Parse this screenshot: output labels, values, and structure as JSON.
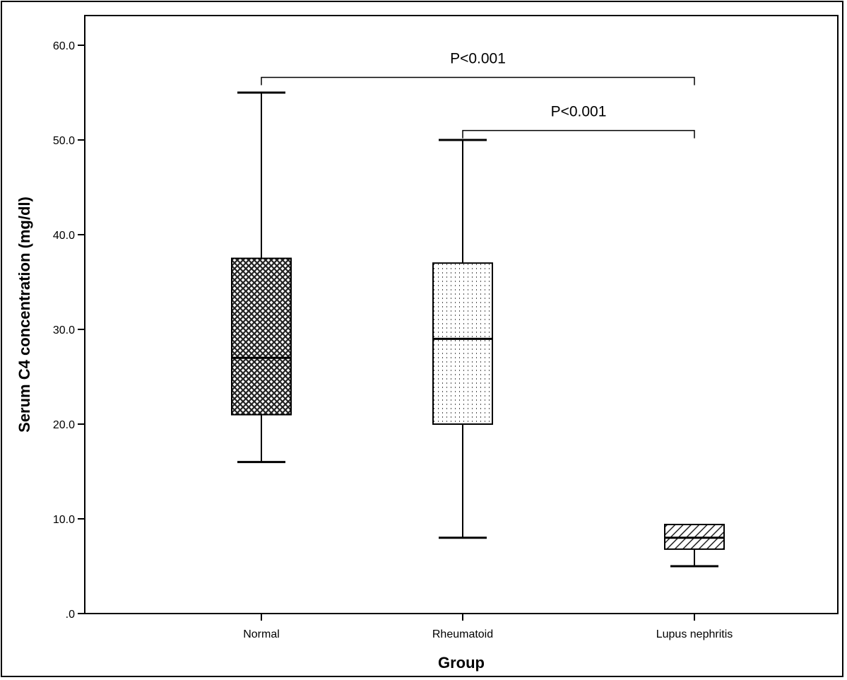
{
  "chart_data": {
    "type": "box",
    "title": "",
    "xlabel": "Group",
    "ylabel": "Serum C4 concentration (mg/dl)",
    "ylim": [
      0,
      62
    ],
    "yticks": [
      0,
      10,
      20,
      30,
      40,
      50,
      60
    ],
    "ytick_labels": [
      ".0",
      "10.0",
      "20.0",
      "30.0",
      "40.0",
      "50.0",
      "60.0"
    ],
    "grid": false,
    "legend": "none",
    "categories": [
      "Normal",
      "Rheumatoid",
      "Lupus nephritis"
    ],
    "boxes": [
      {
        "category": "Normal",
        "min": 16.0,
        "q1": 21.0,
        "median": 27.0,
        "q3": 37.5,
        "max": 55.0,
        "pattern": "crosshatch"
      },
      {
        "category": "Rheumatoid",
        "min": 8.0,
        "q1": 20.0,
        "median": 29.0,
        "q3": 37.0,
        "max": 50.0,
        "pattern": "dots"
      },
      {
        "category": "Lupus nephritis",
        "min": 5.0,
        "q1": 6.8,
        "median": 8.0,
        "q3": 9.4,
        "max": 9.4,
        "pattern": "diagonal"
      }
    ],
    "annotations": [
      {
        "text": "P<0.001",
        "from": "Normal",
        "to": "Lupus nephritis",
        "level": 56.6
      },
      {
        "text": "P<0.001",
        "from": "Rheumatoid",
        "to": "Lupus nephritis",
        "level": 51.0
      }
    ]
  }
}
